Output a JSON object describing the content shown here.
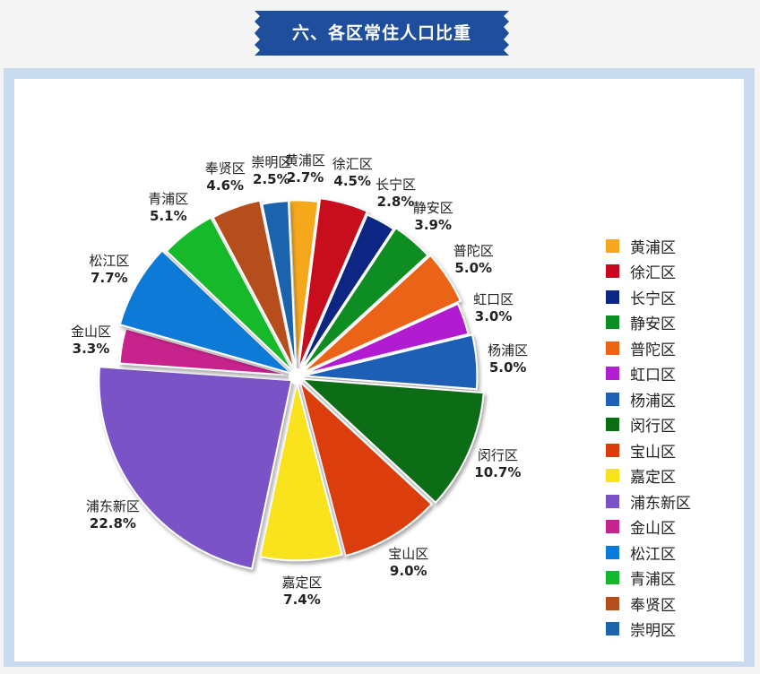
{
  "header": {
    "title": "六、各区常住人口比重",
    "color": "#1f4e9d"
  },
  "chart_data": {
    "type": "pie",
    "title": "六、各区常住人口比重",
    "legend_position": "right",
    "slices": [
      {
        "name": "黄浦区",
        "legend_name": "黄浦区",
        "value": 2.7,
        "label": "2.7%",
        "color": "#f5a81e"
      },
      {
        "name": "徐汇区",
        "legend_name": "徐汇区",
        "value": 4.5,
        "label": "4.5%",
        "color": "#c8081d"
      },
      {
        "name": "长宁区",
        "legend_name": "长宁区",
        "value": 2.8,
        "label": "2.8%",
        "color": "#0d2583"
      },
      {
        "name": "静安区",
        "legend_name": "静安区",
        "value": 3.9,
        "label": "3.9%",
        "color": "#0a8d23"
      },
      {
        "name": "普陀区",
        "legend_name": "普陀区",
        "value": 5.0,
        "label": "5.0%",
        "color": "#eb6412"
      },
      {
        "name": "虹口区",
        "legend_name": "虹口区",
        "value": 3.0,
        "label": "3.0%",
        "color": "#b21fd0"
      },
      {
        "name": "杨浦区",
        "legend_name": "杨浦区",
        "value": 5.0,
        "label": "5.0%",
        "color": "#1f5fb5"
      },
      {
        "name": "闵行区",
        "legend_name": "闵行区",
        "value": 10.7,
        "label": "10.7%",
        "color": "#0a6d14"
      },
      {
        "name": "宝山区",
        "legend_name": "宝山区",
        "value": 9.0,
        "label": "9.0%",
        "color": "#db3c0b"
      },
      {
        "name": "嘉定区",
        "legend_name": "嘉定区",
        "value": 7.4,
        "label": "7.4%",
        "color": "#f8e31a"
      },
      {
        "name": "浦东新区",
        "legend_name": "浦东新区",
        "value": 22.8,
        "label": "22.8%",
        "color": "#7a52c6"
      },
      {
        "name": "金山区",
        "legend_name": "金山区",
        "value": 3.3,
        "label": "3.3%",
        "color": "#c8238c"
      },
      {
        "name": "松江区",
        "legend_name": "松江区",
        "value": 7.7,
        "label": "7.7%",
        "color": "#0c7ad8"
      },
      {
        "name": "青浦区",
        "legend_name": "青浦区",
        "value": 5.1,
        "label": "5.1%",
        "color": "#13b92b"
      },
      {
        "name": "奉贤区",
        "legend_name": "奉贤区",
        "value": 4.6,
        "label": "4.6%",
        "color": "#b64d1d"
      },
      {
        "name": "崇明区",
        "legend_name": "崇明区",
        "value": 2.5,
        "label": "2.5%",
        "color": "#1b63ad"
      }
    ]
  }
}
